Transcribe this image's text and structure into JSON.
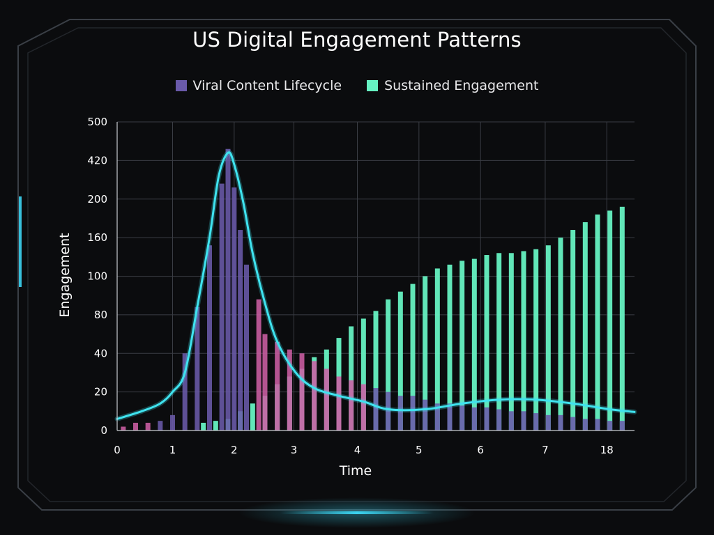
{
  "colors": {
    "background": "#0b0c0e",
    "frame": "#3a3f46",
    "glow": "#3fe0ff",
    "viral": "#6a5aaa",
    "viral_tail": "#cc5fa4",
    "sustained": "#66f2c2",
    "trend": "#3fe3ef",
    "grid": "#3a3d44"
  },
  "chart_data": {
    "type": "bar",
    "title": "US Digital Engagement Patterns",
    "xlabel": "Time",
    "ylabel": "Engagement",
    "x_tick_labels": [
      "0",
      "1",
      "2",
      "3",
      "4",
      "5",
      "6",
      "7",
      "18"
    ],
    "y_tick_labels": [
      "0",
      "20",
      "40",
      "80",
      "100",
      "160",
      "200",
      "420",
      "500"
    ],
    "legend": {
      "position": "top-center"
    },
    "grid": true,
    "x_range": [
      0,
      8.4
    ],
    "y_range": [
      0,
      8
    ],
    "series": [
      {
        "name": "Viral Content Lifecycle",
        "kind": "bar",
        "points": [
          [
            0.1,
            0.1
          ],
          [
            0.3,
            0.2
          ],
          [
            0.5,
            0.2
          ],
          [
            0.7,
            0.25
          ],
          [
            0.9,
            0.4
          ],
          [
            1.1,
            2.0
          ],
          [
            1.3,
            3.2
          ],
          [
            1.5,
            4.8
          ],
          [
            1.7,
            6.4
          ],
          [
            1.8,
            7.3
          ],
          [
            1.9,
            6.3
          ],
          [
            2.0,
            5.2
          ],
          [
            2.1,
            4.3
          ],
          [
            2.3,
            3.4
          ],
          [
            2.4,
            2.5
          ],
          [
            2.6,
            2.3
          ],
          [
            2.8,
            2.1
          ],
          [
            3.0,
            2.0
          ],
          [
            3.2,
            1.8
          ],
          [
            3.4,
            1.6
          ],
          [
            3.6,
            1.4
          ],
          [
            3.8,
            1.3
          ],
          [
            4.0,
            1.2
          ],
          [
            4.2,
            1.1
          ],
          [
            4.4,
            1.0
          ],
          [
            4.6,
            0.9
          ],
          [
            4.8,
            0.9
          ],
          [
            5.0,
            0.8
          ],
          [
            5.2,
            0.7
          ],
          [
            5.4,
            0.7
          ],
          [
            5.6,
            0.65
          ],
          [
            5.8,
            0.6
          ],
          [
            6.0,
            0.6
          ],
          [
            6.2,
            0.55
          ],
          [
            6.4,
            0.5
          ],
          [
            6.6,
            0.5
          ],
          [
            6.8,
            0.45
          ],
          [
            7.0,
            0.4
          ],
          [
            7.2,
            0.4
          ],
          [
            7.4,
            0.35
          ],
          [
            7.6,
            0.3
          ],
          [
            7.8,
            0.3
          ],
          [
            8.0,
            0.25
          ],
          [
            8.2,
            0.25
          ]
        ]
      },
      {
        "name": "Sustained Engagement",
        "kind": "bar",
        "points": [
          [
            1.4,
            0.2
          ],
          [
            1.6,
            0.25
          ],
          [
            1.8,
            0.3
          ],
          [
            2.0,
            0.5
          ],
          [
            2.2,
            0.7
          ],
          [
            2.4,
            0.9
          ],
          [
            2.6,
            1.2
          ],
          [
            2.8,
            1.4
          ],
          [
            3.0,
            1.6
          ],
          [
            3.2,
            1.9
          ],
          [
            3.4,
            2.1
          ],
          [
            3.6,
            2.4
          ],
          [
            3.8,
            2.7
          ],
          [
            4.0,
            2.9
          ],
          [
            4.2,
            3.1
          ],
          [
            4.4,
            3.4
          ],
          [
            4.6,
            3.6
          ],
          [
            4.8,
            3.8
          ],
          [
            5.0,
            4.0
          ],
          [
            5.2,
            4.2
          ],
          [
            5.4,
            4.3
          ],
          [
            5.6,
            4.4
          ],
          [
            5.8,
            4.45
          ],
          [
            6.0,
            4.55
          ],
          [
            6.2,
            4.6
          ],
          [
            6.4,
            4.6
          ],
          [
            6.6,
            4.65
          ],
          [
            6.8,
            4.7
          ],
          [
            7.0,
            4.8
          ],
          [
            7.2,
            5.0
          ],
          [
            7.4,
            5.2
          ],
          [
            7.6,
            5.4
          ],
          [
            7.8,
            5.6
          ],
          [
            8.0,
            5.7
          ],
          [
            8.2,
            5.8
          ]
        ]
      },
      {
        "name": "",
        "kind": "line",
        "points": [
          [
            0,
            0.3
          ],
          [
            0.4,
            0.5
          ],
          [
            0.7,
            0.7
          ],
          [
            0.9,
            1.0
          ],
          [
            1.1,
            1.5
          ],
          [
            1.3,
            3.2
          ],
          [
            1.5,
            5.0
          ],
          [
            1.65,
            6.6
          ],
          [
            1.8,
            7.2
          ],
          [
            1.9,
            6.9
          ],
          [
            2.05,
            5.9
          ],
          [
            2.2,
            4.6
          ],
          [
            2.4,
            3.3
          ],
          [
            2.6,
            2.3
          ],
          [
            2.9,
            1.5
          ],
          [
            3.2,
            1.1
          ],
          [
            3.6,
            0.9
          ],
          [
            4.0,
            0.75
          ],
          [
            4.4,
            0.55
          ],
          [
            5.0,
            0.55
          ],
          [
            5.6,
            0.7
          ],
          [
            6.2,
            0.8
          ],
          [
            6.8,
            0.8
          ],
          [
            7.4,
            0.7
          ],
          [
            8.0,
            0.55
          ],
          [
            8.4,
            0.48
          ]
        ]
      }
    ]
  }
}
